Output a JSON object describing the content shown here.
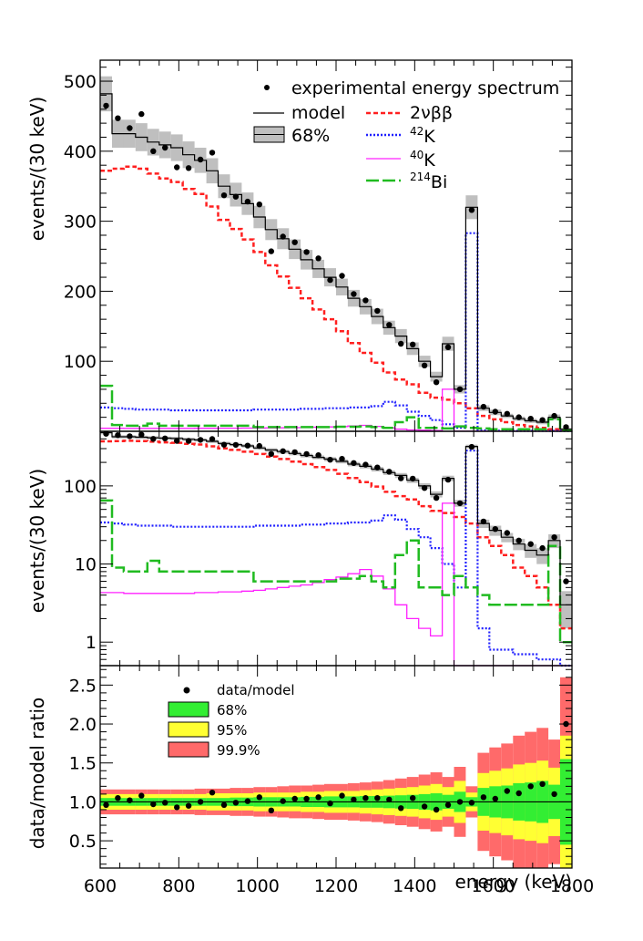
{
  "chart_data": {
    "type": "histogram",
    "bin_edges_keV": [
      600,
      630,
      660,
      690,
      720,
      750,
      780,
      810,
      840,
      870,
      900,
      930,
      960,
      990,
      1020,
      1050,
      1080,
      1110,
      1140,
      1170,
      1200,
      1230,
      1260,
      1290,
      1320,
      1350,
      1380,
      1410,
      1440,
      1470,
      1500,
      1530,
      1560,
      1590,
      1620,
      1650,
      1680,
      1710,
      1740,
      1770,
      1800
    ],
    "xlabel": "energy (keV)",
    "xlim": [
      600,
      1800
    ],
    "x_ticks": [
      "600",
      "800",
      "1000",
      "1200",
      "1400",
      "1600",
      "1800"
    ],
    "panels": [
      {
        "id": "linear",
        "ylabel": "events/(30 keV)",
        "yscale": "linear",
        "ylim": [
          0,
          530
        ],
        "y_ticks": [
          100,
          200,
          300,
          400,
          500
        ],
        "y_tick_labels": [
          "100",
          "200",
          "300",
          "400",
          "500"
        ],
        "legend": {
          "data": "experimental energy spectrum",
          "model": "model",
          "band": "68%",
          "c2nbb": "2νββ",
          "k42": "42K",
          "k40": "40K",
          "bi214": "214Bi"
        }
      },
      {
        "id": "log",
        "ylabel": "events/(30 keV)",
        "yscale": "log",
        "ylim": [
          0.5,
          500
        ],
        "y_ticks": [
          1,
          10,
          100
        ],
        "y_tick_labels": [
          "1",
          "10",
          "100"
        ]
      },
      {
        "id": "ratio",
        "ylabel": "data/model ratio",
        "yscale": "linear",
        "ylim": [
          0.15,
          2.75
        ],
        "y_ticks": [
          0.5,
          1.0,
          1.5,
          2.0,
          2.5
        ],
        "y_tick_labels": [
          "0.5",
          "1.0",
          "1.5",
          "2.0",
          "2.5"
        ],
        "legend": {
          "data": "data/model",
          "b68": "68%",
          "b95": "95%",
          "b999": "99.9%"
        }
      }
    ],
    "series": {
      "data": [
        465,
        447,
        433,
        453,
        400,
        405,
        377,
        376,
        388,
        398,
        337,
        335,
        328,
        324,
        257,
        278,
        270,
        256,
        247,
        216,
        222,
        196,
        187,
        172,
        152,
        125,
        124,
        94,
        70,
        120,
        60,
        316,
        35,
        28,
        25,
        20,
        18,
        16,
        22,
        6
      ],
      "model": [
        482,
        425,
        425,
        420,
        413,
        409,
        405,
        395,
        387,
        372,
        350,
        338,
        325,
        306,
        288,
        275,
        260,
        245,
        232,
        220,
        206,
        190,
        178,
        164,
        148,
        136,
        118,
        100,
        78,
        125,
        60,
        320,
        33,
        27,
        22,
        18,
        15,
        13,
        20,
        3
      ],
      "model_err": [
        25,
        20,
        20,
        20,
        19,
        19,
        19,
        19,
        18,
        18,
        17,
        17,
        16,
        16,
        15,
        15,
        14,
        14,
        13,
        13,
        12,
        12,
        11,
        11,
        10,
        10,
        9,
        8,
        7,
        10,
        6,
        17,
        4,
        4,
        3,
        3,
        3,
        3,
        4,
        1.5
      ],
      "c2nbb": [
        372,
        375,
        378,
        375,
        368,
        361,
        356,
        346,
        339,
        321,
        302,
        289,
        274,
        256,
        237,
        221,
        205,
        190,
        174,
        160,
        143,
        126,
        112,
        98,
        84,
        74,
        67,
        55,
        48,
        45,
        40,
        33,
        22,
        17,
        13,
        9,
        7,
        5,
        3,
        1.5
      ],
      "k42": [
        34,
        33,
        32,
        31,
        31,
        31,
        30,
        30,
        30,
        30,
        30,
        30,
        30,
        31,
        31,
        31,
        31,
        32,
        32,
        33,
        33,
        34,
        34,
        36,
        42,
        37,
        28,
        22,
        16,
        10,
        5,
        283,
        1.5,
        0.8,
        0.8,
        0.7,
        0.7,
        0.6,
        0.6,
        0.5
      ],
      "k40": [
        4.3,
        4.3,
        4.2,
        4.2,
        4.2,
        4.2,
        4.2,
        4.2,
        4.3,
        4.3,
        4.4,
        4.4,
        4.5,
        4.6,
        4.8,
        5,
        5.2,
        5.4,
        5.8,
        6.3,
        6.8,
        7.5,
        8.5,
        7,
        4.8,
        3,
        2,
        1.5,
        1.2,
        60,
        0.1,
        0.1,
        0.1,
        0.1,
        0.1,
        0.1,
        0.1,
        0.1,
        0.1,
        0.1
      ],
      "bi214": [
        65,
        9,
        8,
        8,
        11,
        8,
        8,
        8,
        8,
        8,
        8,
        8,
        8,
        6,
        6,
        6,
        6,
        6,
        6,
        6,
        6.5,
        6.5,
        7,
        6,
        5,
        13,
        20,
        5,
        5,
        4,
        7,
        5,
        4,
        3,
        3,
        3,
        3,
        3,
        17,
        1
      ]
    },
    "ratio": {
      "values": [
        0.96,
        1.05,
        1.02,
        1.08,
        0.97,
        0.99,
        0.93,
        0.95,
        1.0,
        1.12,
        0.96,
        0.99,
        1.01,
        1.06,
        0.89,
        1.01,
        1.04,
        1.04,
        1.06,
        0.98,
        1.08,
        1.03,
        1.05,
        1.05,
        1.03,
        0.92,
        1.05,
        0.94,
        0.9,
        0.96,
        1.0,
        0.99,
        1.06,
        1.04,
        1.14,
        1.11,
        1.2,
        1.23,
        1.1,
        2.0
      ],
      "b68_half": [
        0.05,
        0.05,
        0.05,
        0.05,
        0.05,
        0.05,
        0.05,
        0.05,
        0.05,
        0.05,
        0.05,
        0.055,
        0.055,
        0.06,
        0.06,
        0.06,
        0.06,
        0.065,
        0.065,
        0.07,
        0.07,
        0.07,
        0.075,
        0.075,
        0.08,
        0.085,
        0.09,
        0.1,
        0.11,
        0.09,
        0.13,
        0.06,
        0.18,
        0.2,
        0.21,
        0.24,
        0.25,
        0.27,
        0.22,
        0.55
      ],
      "b95_half": [
        0.1,
        0.1,
        0.1,
        0.1,
        0.1,
        0.1,
        0.1,
        0.1,
        0.1,
        0.11,
        0.11,
        0.11,
        0.11,
        0.12,
        0.12,
        0.12,
        0.12,
        0.13,
        0.13,
        0.14,
        0.14,
        0.14,
        0.15,
        0.16,
        0.17,
        0.18,
        0.19,
        0.21,
        0.23,
        0.19,
        0.27,
        0.12,
        0.37,
        0.4,
        0.43,
        0.48,
        0.5,
        0.53,
        0.44,
        0.85
      ],
      "b999_half": [
        0.16,
        0.16,
        0.16,
        0.16,
        0.16,
        0.16,
        0.16,
        0.16,
        0.17,
        0.17,
        0.17,
        0.18,
        0.18,
        0.19,
        0.19,
        0.2,
        0.21,
        0.21,
        0.22,
        0.23,
        0.23,
        0.24,
        0.25,
        0.26,
        0.28,
        0.3,
        0.32,
        0.35,
        0.38,
        0.32,
        0.45,
        0.2,
        0.63,
        0.7,
        0.75,
        0.85,
        0.9,
        0.95,
        0.8,
        1.6
      ]
    },
    "colors": {
      "data": "#000000",
      "model": "#000000",
      "band_grey": "#bfbfbf",
      "c2nbb": "#ff2020",
      "k42": "#2020ff",
      "k40": "#ff20ff",
      "bi214": "#20bb20",
      "b68": "#33ee33",
      "b95": "#ffff33",
      "b999": "#ff6a6a"
    }
  }
}
